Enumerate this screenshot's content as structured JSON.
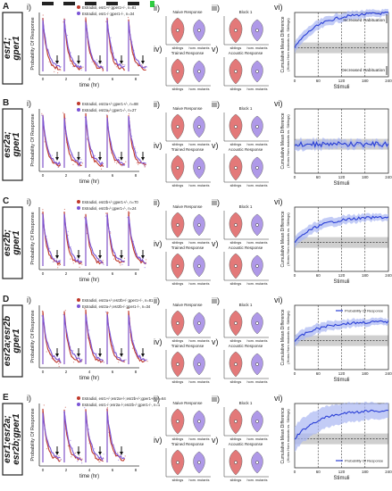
{
  "panels": [
    {
      "letter": "A",
      "genotype_lines": [
        "esr1;",
        "gper1"
      ],
      "legend": [
        "Estradiol, esr1+/-;gper1+/-, n=81",
        "Estradiol, esr1-/-;gper1-/-, n=34"
      ],
      "vi_legend": ""
    },
    {
      "letter": "B",
      "genotype_lines": [
        "esr2a;",
        "gper1"
      ],
      "legend": [
        "Estradiol, esr2a+/-;gper1+/-, n=88",
        "Estradiol, esr2a-/-;gper1-/-, n=27"
      ],
      "vi_legend": ""
    },
    {
      "letter": "C",
      "genotype_lines": [
        "esr2b;",
        "gper1"
      ],
      "legend": [
        "Estradiol, esr2b+/-;gper1+/-, n=70",
        "Estradiol, esr2b-/-;gper1-/-, n=24"
      ],
      "vi_legend": ""
    },
    {
      "letter": "D",
      "genotype_lines": [
        "esr2a;esr2b",
        "gper1"
      ],
      "legend": [
        "Estradiol, esr2a+/-;esr2b+/-;gper1+/-, n=81",
        "Estradiol, esr2a-/-;esr2b-/-;gper1-/-, n=34"
      ],
      "vi_legend": "Probability Of Response"
    },
    {
      "letter": "E",
      "genotype_lines": [
        "esr1;esr2a;",
        "esr2b;gper1"
      ],
      "legend": [
        "Estradiol, esr1+/-;esr2a+/-;esr2b+/-;gper1+/-, n=64",
        "Estradiol, esr1-/-;esr2a-/-;esr2b-/-;gper1-/-, n=1"
      ],
      "vi_legend": "Probability Of Response"
    }
  ],
  "roman": {
    "i": "i)",
    "ii": "ii)",
    "iii": "iii)",
    "iv": "iv)",
    "v": "v)",
    "vi": "vi)"
  },
  "axes": {
    "prob_ylabel": "Probability Of Response",
    "time_xlabel": "time (hr)",
    "time_ticks": [
      "0",
      "2",
      "4",
      "6",
      "8"
    ],
    "cmd_ylabel_1": "Cumulative Mean Difference",
    "cmd_ylabel_2": "(Homs Hom mutants vs. Siblings)",
    "stimuli_label": "Stimuli",
    "stimuli_ticks": [
      "0",
      "60",
      "120",
      "180",
      "240"
    ]
  },
  "violin_titles": {
    "naive": "Naive Response",
    "block1": "Block 1",
    "trained": "Trained Response",
    "acoustic": "Acoustic Response"
  },
  "violin_xticks": [
    "siblings",
    "hom. mutants"
  ],
  "habituation": {
    "increased": "Increased Habituation",
    "decreased": "Decreased Habituation"
  },
  "colors": {
    "siblings": "#c0392b",
    "mutants": "#7b55d6",
    "violin_red": "#e06b6b",
    "violin_purple": "#a78ee6",
    "cmd_line": "#2a3fd6",
    "cmd_band": "#a9b6f2",
    "gray_band": "#cfcfcf",
    "stim_marker": "#2ecc40"
  }
}
